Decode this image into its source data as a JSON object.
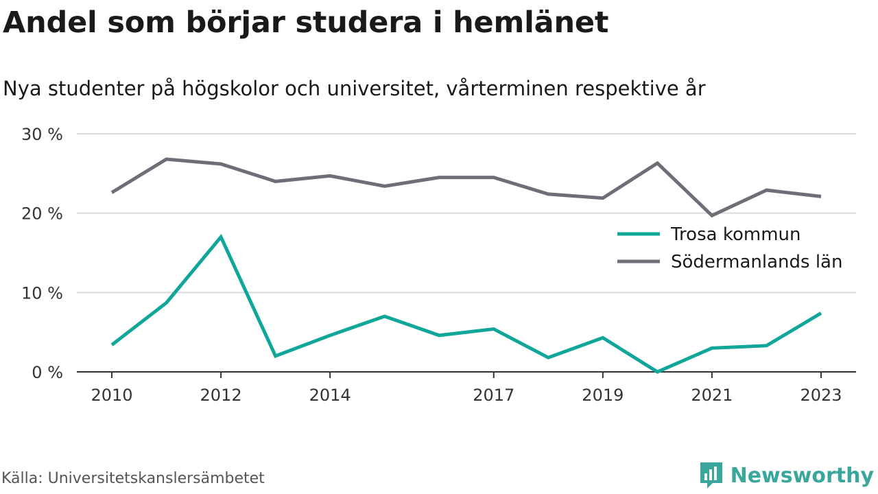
{
  "header": {
    "title": "Andel som börjar studera i hemlänet",
    "subtitle": "Nya studenter på högskolor och universitet, vårterminen respektive år"
  },
  "footer": {
    "source": "Källa: Universitetskanslersämbetet",
    "brand": "Newsworthy",
    "brand_icon": "bar-chart-speech-bubble-icon"
  },
  "colors": {
    "trosa": "#10a69a",
    "sodermanland": "#6e6e78",
    "grid": "#d9d9d9",
    "axis": "#333333",
    "brand": "#3aa79c"
  },
  "chart_data": {
    "type": "line",
    "x": [
      2010,
      2011,
      2012,
      2013,
      2014,
      2015,
      2016,
      2017,
      2018,
      2019,
      2020,
      2021,
      2022,
      2023
    ],
    "x_tick_labels": [
      "2010",
      "2012",
      "2014",
      "2017",
      "2019",
      "2021",
      "2023"
    ],
    "y_tick_values": [
      0,
      10,
      20,
      30
    ],
    "y_tick_labels": [
      "0 %",
      "10 %",
      "20 %",
      "30 %"
    ],
    "ylim": [
      0,
      30
    ],
    "grid": true,
    "legend_position": "right, middle",
    "series": [
      {
        "name": "Trosa kommun",
        "color": "#10a69a",
        "values": [
          3.4,
          8.7,
          17.0,
          2.0,
          4.6,
          7.0,
          4.6,
          5.4,
          1.8,
          4.3,
          0.0,
          3.0,
          3.3,
          7.4
        ]
      },
      {
        "name": "Södermanlands län",
        "color": "#6e6e78",
        "values": [
          22.6,
          26.8,
          26.2,
          24.0,
          24.7,
          23.4,
          24.5,
          24.5,
          22.4,
          21.9,
          26.3,
          19.7,
          22.9,
          22.1
        ]
      }
    ]
  }
}
